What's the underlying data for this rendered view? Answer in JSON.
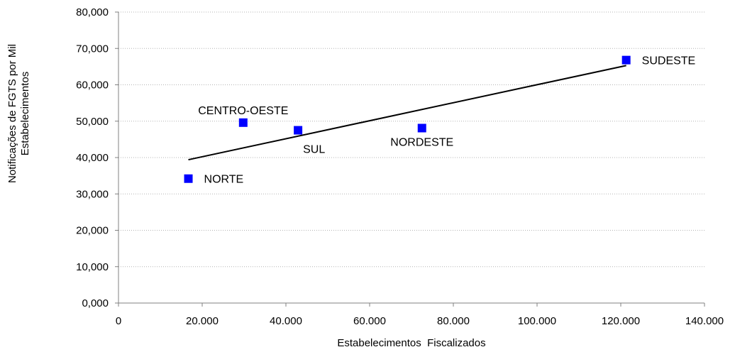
{
  "chart_data": {
    "type": "scatter",
    "xlabel": "Estabelecimentos  Fiscalizados",
    "ylabel": [
      "Notificações de FGTS por Mil",
      "Estabelecimentos"
    ],
    "xlim": [
      0,
      140000
    ],
    "ylim": [
      0,
      80
    ],
    "xticks": [
      0,
      20000,
      40000,
      60000,
      80000,
      100000,
      120000,
      140000
    ],
    "xtick_labels": [
      "0",
      "20.000",
      "40.000",
      "60.000",
      "80.000",
      "100.000",
      "120.000",
      "140.000"
    ],
    "yticks": [
      0,
      10,
      20,
      30,
      40,
      50,
      60,
      70,
      80
    ],
    "ytick_labels": [
      "0,000",
      "10,000",
      "20,000",
      "30,000",
      "40,000",
      "50,000",
      "60,000",
      "70,000",
      "80,000"
    ],
    "grid": "horizontal",
    "marker_color": "#0000ff",
    "points": [
      {
        "label": "NORTE",
        "x": 16700,
        "y": 34.2,
        "label_pos": "right"
      },
      {
        "label": "CENTRO-OESTE",
        "x": 29800,
        "y": 49.6,
        "label_pos": "above"
      },
      {
        "label": "SUL",
        "x": 42900,
        "y": 47.5,
        "label_pos": "below-right"
      },
      {
        "label": "NORDESTE",
        "x": 72500,
        "y": 48.1,
        "label_pos": "below"
      },
      {
        "label": "SUDESTE",
        "x": 121300,
        "y": 66.8,
        "label_pos": "right"
      }
    ],
    "trendline": {
      "x": [
        16700,
        121300
      ],
      "y": [
        39.4,
        65.3
      ]
    }
  }
}
